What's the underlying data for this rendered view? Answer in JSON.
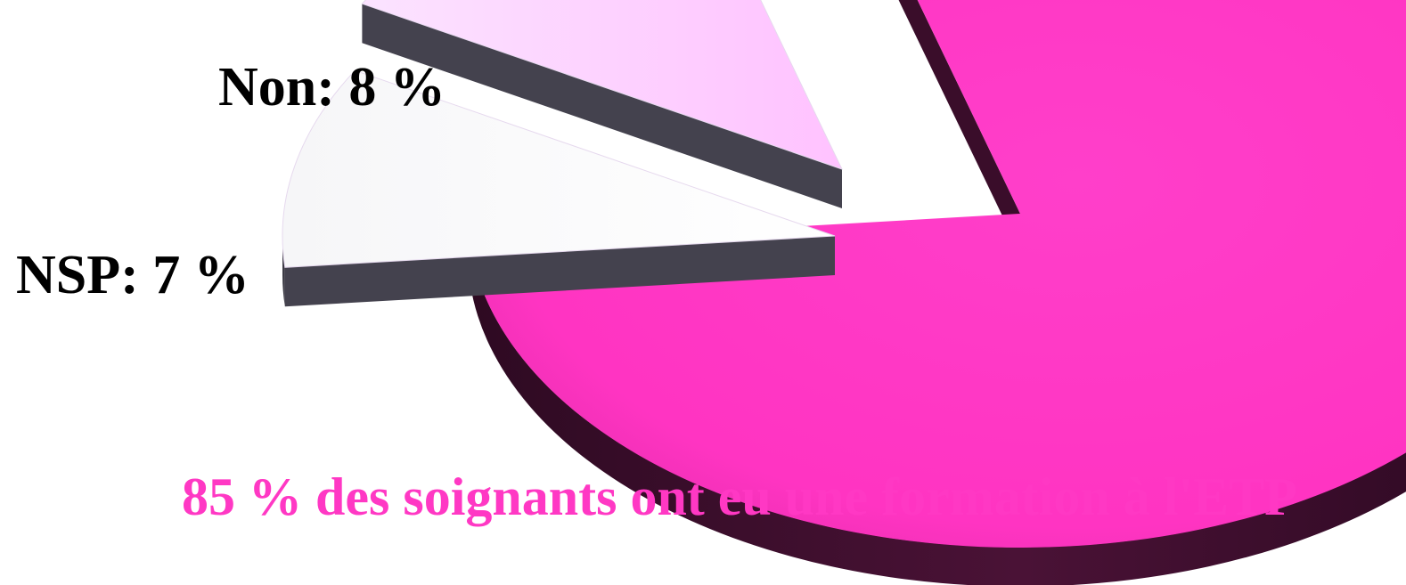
{
  "chart_data": {
    "type": "pie",
    "style": "3d-exploded",
    "slices": [
      {
        "label": "Non: 8 %",
        "value": 8,
        "color": "#ffccff",
        "exploded": true
      },
      {
        "label": "NSP: 7 %",
        "value": 7,
        "color": "#ffffff",
        "exploded": true
      },
      {
        "label": "",
        "value": 85,
        "color": "#ff38c4",
        "exploded": false
      }
    ],
    "annotation": "85 % des soignants ont eu une formation à l'ETP",
    "annotation_color": "#ff38c4",
    "side_colors": {
      "pink": "#3a0d2a",
      "grey": "#44424e"
    }
  }
}
